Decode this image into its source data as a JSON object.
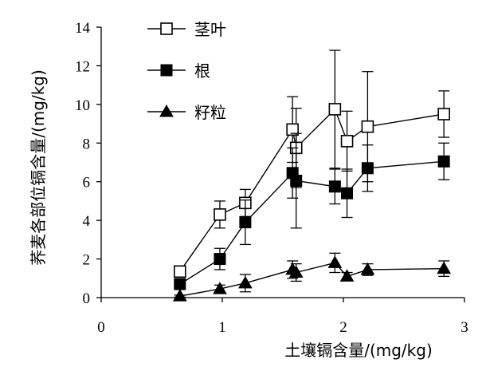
{
  "chart_data": {
    "type": "line",
    "title": "",
    "xlabel": "土壤镉含量/(mg/kg)",
    "ylabel": "荞麦各部位镉含量/(mg/kg)",
    "xlim": [
      0,
      3
    ],
    "ylim": [
      0,
      14
    ],
    "xticks": [
      0,
      1,
      2,
      3
    ],
    "yticks": [
      0,
      2,
      4,
      6,
      8,
      10,
      12,
      14
    ],
    "grid": false,
    "legend_position": "top-left",
    "series": [
      {
        "name": "茎叶",
        "marker": "open-square",
        "x": [
          0.65,
          0.98,
          1.19,
          1.58,
          1.61,
          1.93,
          2.03,
          2.2,
          2.83
        ],
        "y": [
          1.35,
          4.3,
          4.9,
          8.7,
          7.75,
          9.75,
          8.1,
          8.85,
          9.5
        ],
        "err": [
          0.25,
          0.7,
          0.7,
          1.7,
          2.05,
          3.05,
          1.55,
          2.85,
          1.2
        ]
      },
      {
        "name": "根",
        "marker": "filled-square",
        "x": [
          0.65,
          0.98,
          1.19,
          1.58,
          1.61,
          1.93,
          2.03,
          2.2,
          2.83
        ],
        "y": [
          0.7,
          2.0,
          3.9,
          6.45,
          6.05,
          5.75,
          5.4,
          6.7,
          7.05
        ],
        "err": [
          0.25,
          0.55,
          1.15,
          1.3,
          2.45,
          0.9,
          1.25,
          1.2,
          0.95
        ]
      },
      {
        "name": "籽粒",
        "marker": "filled-triangle",
        "x": [
          0.65,
          0.98,
          1.19,
          1.58,
          1.61,
          1.93,
          2.03,
          2.2,
          2.83
        ],
        "y": [
          0.08,
          0.45,
          0.75,
          1.45,
          1.3,
          1.8,
          1.1,
          1.45,
          1.5
        ],
        "err": [
          0.05,
          0.2,
          0.45,
          0.45,
          0.45,
          0.5,
          0.2,
          0.3,
          0.4
        ]
      }
    ]
  }
}
